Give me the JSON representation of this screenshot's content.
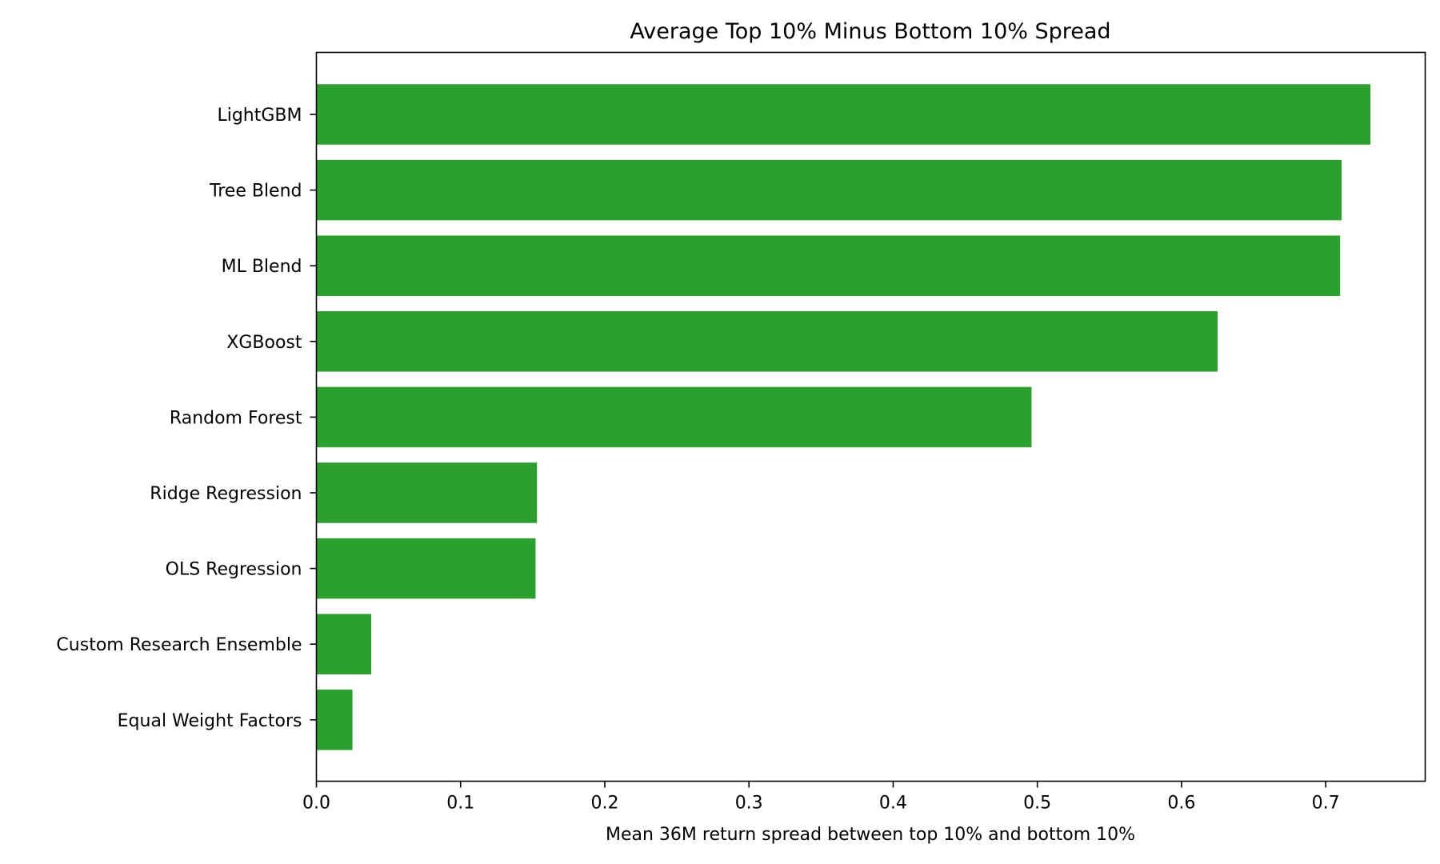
{
  "chart_data": {
    "type": "bar",
    "orientation": "horizontal",
    "title": "Average Top 10% Minus Bottom 10% Spread",
    "xlabel": "Mean 36M return spread between top 10% and bottom 10%",
    "ylabel": "",
    "categories": [
      "LightGBM",
      "Tree Blend",
      "ML Blend",
      "XGBoost",
      "Random Forest",
      "Ridge Regression",
      "OLS Regression",
      "Custom Research Ensemble",
      "Equal Weight Factors"
    ],
    "values": [
      0.731,
      0.711,
      0.71,
      0.625,
      0.496,
      0.153,
      0.152,
      0.038,
      0.025
    ],
    "xlim": [
      0,
      0.769
    ],
    "xticks": [
      "0.0",
      "0.1",
      "0.2",
      "0.3",
      "0.4",
      "0.5",
      "0.6",
      "0.7"
    ],
    "bar_color": "#2ca02c",
    "grid": false,
    "legend": "none"
  }
}
